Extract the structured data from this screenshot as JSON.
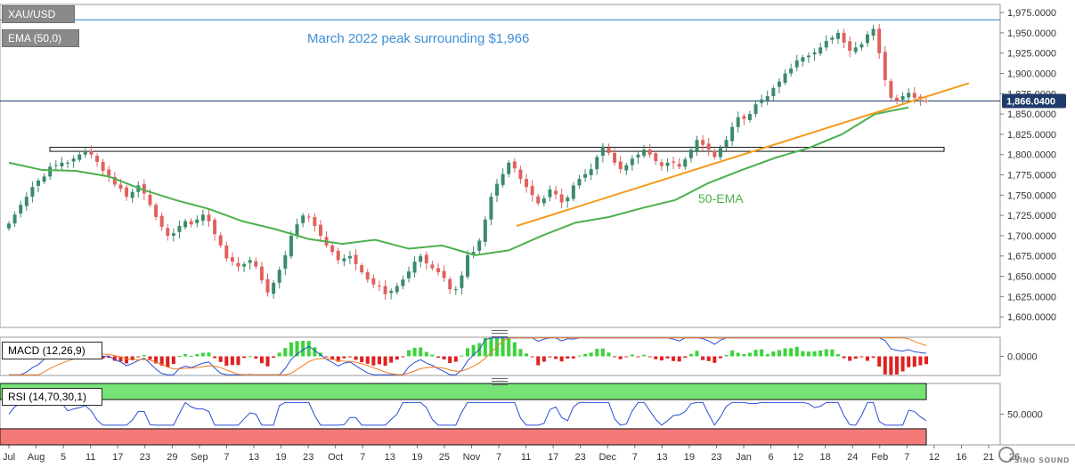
{
  "symbol": "XAU/USD",
  "indicators": {
    "ema": "EMA (50,0)",
    "macd": "MACD (12,26,9)",
    "rsi": "RSI (14,70,30,1)"
  },
  "annotations": {
    "peak_note": "March 2022 peak surrounding $1,966",
    "ema_label": "50-EMA"
  },
  "watermark": "SINO SOUND",
  "colors": {
    "up": "#3a8a6c",
    "down": "#e0615e",
    "ema": "#4cb14c",
    "trend": "#f59b1d",
    "peak_line": "#3c8fd6",
    "price_tag": "#1f3b6b",
    "macd_line": "#2a4fd6",
    "signal_line": "#f07b22",
    "rsi_line": "#2a4fd6",
    "rsi_overbought": "#77e377",
    "rsi_oversold": "#f47a7a"
  },
  "chart_data": [
    {
      "type": "candlestick",
      "title": "XAU/USD",
      "ylim": [
        1587,
        1985
      ],
      "y_ticks": [
        "1,975.0000",
        "1,950.0000",
        "1,925.0000",
        "1,900.0000",
        "1,875.0000",
        "1,850.0000",
        "1,825.0000",
        "1,800.0000",
        "1,775.0000",
        "1,750.0000",
        "1,725.0000",
        "1,700.0000",
        "1,675.0000",
        "1,650.0000",
        "1,625.0000",
        "1,600.0000"
      ],
      "x_ticks": [
        "Jul",
        "Aug",
        "5",
        "11",
        "17",
        "23",
        "29",
        "Sep",
        "7",
        "13",
        "19",
        "23",
        "Oct",
        "7",
        "13",
        "19",
        "25",
        "Nov",
        "7",
        "11",
        "17",
        "23",
        "Dec",
        "7",
        "13",
        "19",
        "23",
        "Jan",
        "6",
        "12",
        "18",
        "24",
        "Feb",
        "7",
        "12",
        "16",
        "21"
      ],
      "x_end_label": "26",
      "last_price": "1,866.0400",
      "resistance_line": 1966,
      "horizontal_zone": [
        1804,
        1809
      ],
      "ema_50": [
        1790,
        1781,
        1780,
        1773,
        1757,
        1744,
        1733,
        1718,
        1708,
        1696,
        1690,
        1695,
        1684,
        1688,
        1676,
        1682,
        1700,
        1716,
        1723,
        1734,
        1744,
        1765,
        1781,
        1796,
        1808,
        1825,
        1850,
        1858
      ],
      "trendline": {
        "start": 1712,
        "end": 1888
      },
      "closes": [
        1715,
        1726,
        1738,
        1748,
        1760,
        1768,
        1773,
        1785,
        1787,
        1790,
        1790,
        1795,
        1800,
        1803,
        1800,
        1791,
        1780,
        1774,
        1763,
        1758,
        1748,
        1754,
        1762,
        1752,
        1738,
        1723,
        1711,
        1700,
        1703,
        1712,
        1718,
        1714,
        1720,
        1726,
        1718,
        1702,
        1688,
        1672,
        1668,
        1662,
        1665,
        1670,
        1662,
        1645,
        1630,
        1642,
        1658,
        1676,
        1700,
        1714,
        1725,
        1723,
        1712,
        1700,
        1688,
        1680,
        1670,
        1672,
        1675,
        1665,
        1655,
        1646,
        1640,
        1638,
        1628,
        1632,
        1638,
        1646,
        1656,
        1668,
        1675,
        1666,
        1660,
        1655,
        1648,
        1634,
        1634,
        1651,
        1676,
        1680,
        1694,
        1720,
        1748,
        1764,
        1776,
        1790,
        1783,
        1770,
        1760,
        1750,
        1740,
        1746,
        1757,
        1751,
        1741,
        1747,
        1762,
        1770,
        1776,
        1782,
        1797,
        1810,
        1802,
        1790,
        1782,
        1787,
        1795,
        1800,
        1806,
        1800,
        1792,
        1786,
        1790,
        1790,
        1785,
        1794,
        1806,
        1818,
        1812,
        1806,
        1797,
        1808,
        1818,
        1834,
        1846,
        1844,
        1850,
        1862,
        1868,
        1872,
        1882,
        1890,
        1900,
        1906,
        1916,
        1920,
        1922,
        1926,
        1932,
        1940,
        1944,
        1950,
        1938,
        1928,
        1932,
        1936,
        1948,
        1955,
        1925,
        1892,
        1870,
        1866,
        1872,
        1876,
        1870,
        1868,
        1866
      ]
    },
    {
      "type": "macd",
      "title": "MACD (12,26,9)",
      "ylim": [
        -28,
        28
      ],
      "y_ticks": [
        "0.0000"
      ]
    },
    {
      "type": "rsi",
      "title": "RSI (14,70,30,1)",
      "ylim": [
        8,
        92
      ],
      "overbought": 70,
      "oversold": 30,
      "y_ticks": [
        "50.0000"
      ]
    }
  ]
}
